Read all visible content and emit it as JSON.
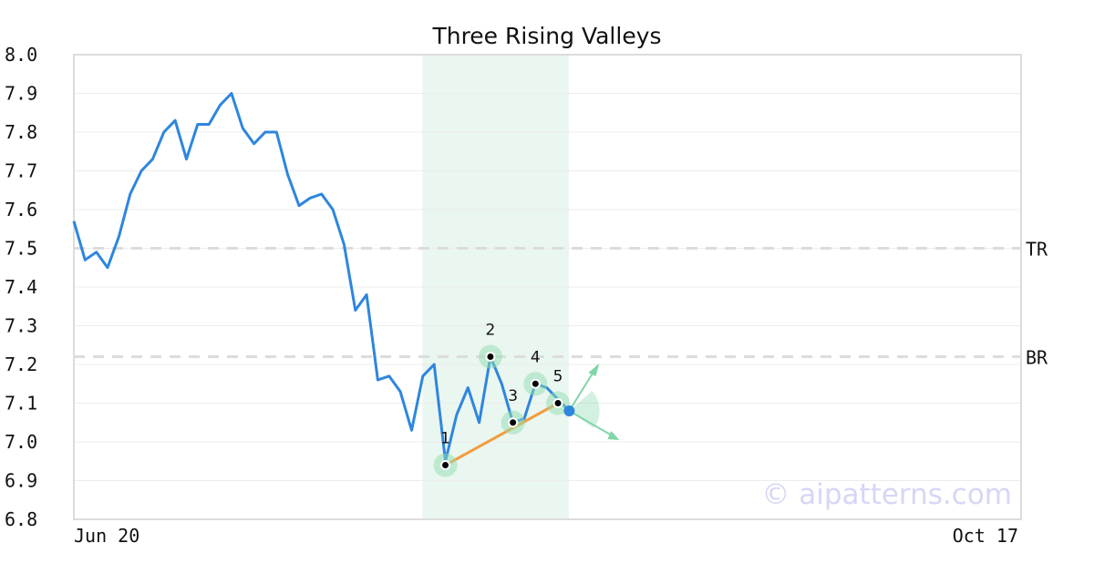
{
  "chart_data": {
    "type": "line",
    "title": "Three Rising Valleys",
    "xlabel": "",
    "ylabel": "",
    "ylim": [
      6.8,
      8.0
    ],
    "yticks": [
      "8.0",
      "7.9",
      "7.8",
      "7.7",
      "7.6",
      "7.5",
      "7.4",
      "7.3",
      "7.2",
      "7.1",
      "7.0",
      "6.9",
      "6.8"
    ],
    "xticks": {
      "start": "Jun 20",
      "end": "Oct 17"
    },
    "grid": "horizontal",
    "series": [
      {
        "color": "#2e86de",
        "values": [
          7.57,
          7.47,
          7.49,
          7.45,
          7.53,
          7.64,
          7.7,
          7.73,
          7.8,
          7.83,
          7.73,
          7.82,
          7.82,
          7.87,
          7.9,
          7.81,
          7.77,
          7.8,
          7.8,
          7.69,
          7.61,
          7.63,
          7.64,
          7.6,
          7.51,
          7.34,
          7.38,
          7.16,
          7.17,
          7.13,
          7.03,
          7.17,
          7.2,
          6.95,
          7.07,
          7.14,
          7.05,
          7.22,
          7.15,
          7.05,
          7.06,
          7.15,
          7.14,
          7.11,
          7.08
        ]
      }
    ],
    "levels": [
      {
        "label": "TR",
        "value": 7.5
      },
      {
        "label": "BR",
        "value": 7.22
      }
    ],
    "highlight_range": {
      "from_index": 31,
      "to_index": 44,
      "color": "#eaf6f0"
    },
    "pattern_points": [
      {
        "label": "1",
        "index": 33,
        "value": 6.94
      },
      {
        "label": "2",
        "index": 37,
        "value": 7.22
      },
      {
        "label": "3",
        "index": 39,
        "value": 7.05
      },
      {
        "label": "4",
        "index": 41,
        "value": 7.15
      },
      {
        "label": "5",
        "index": 43,
        "value": 7.1
      }
    ],
    "trend_line": {
      "from_label": "1",
      "to_label": "5",
      "color": "#f39c3d"
    },
    "last_point": {
      "index": 44,
      "value": 7.08,
      "color": "#2e86de"
    },
    "projection_color": "#7fd6a8",
    "watermark": "© aipatterns.com"
  }
}
